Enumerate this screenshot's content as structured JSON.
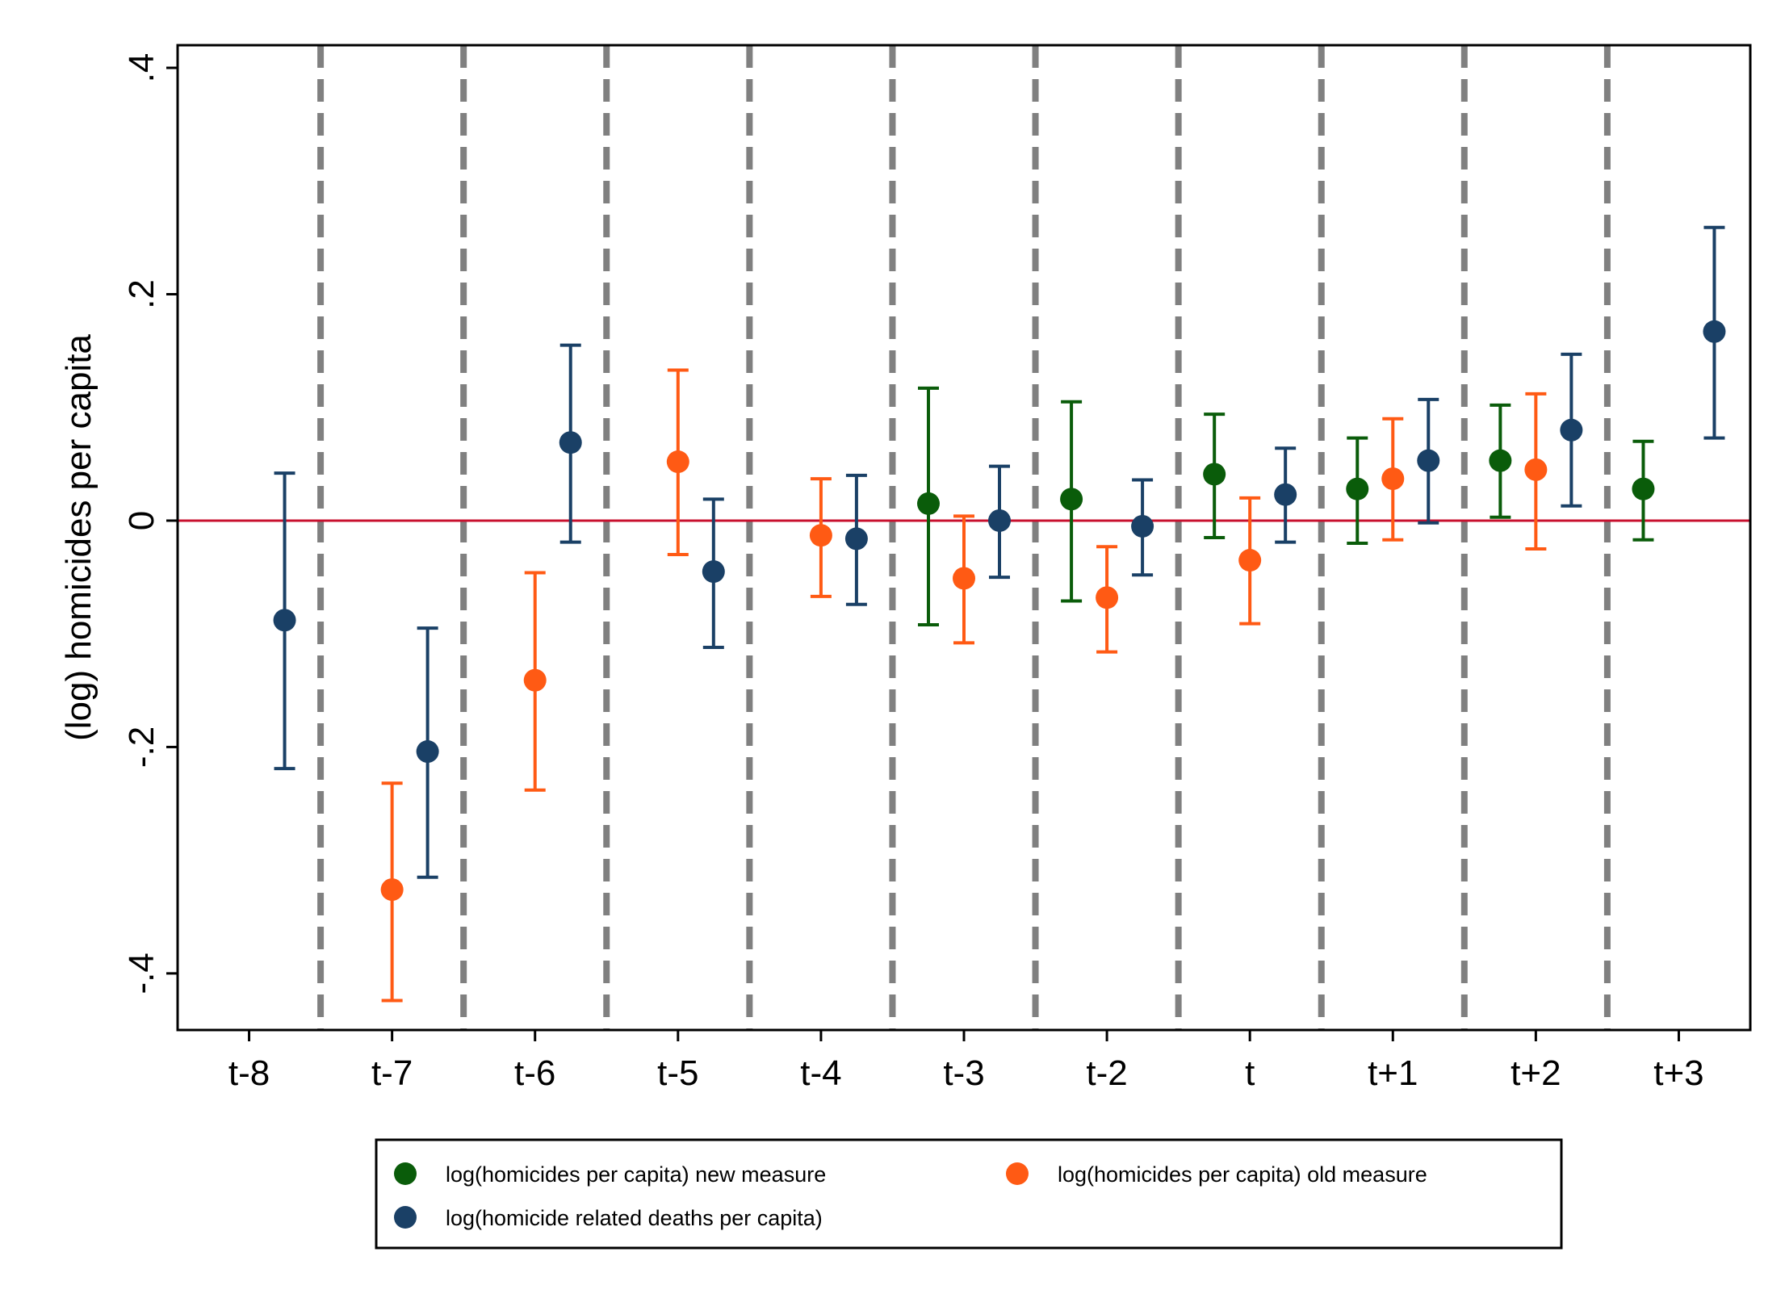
{
  "chart_data": {
    "type": "scatter",
    "subtype": "coefficient plot with confidence intervals",
    "title": "",
    "xlabel": "",
    "ylabel": "(log) homicides per capita",
    "categories": [
      "t-8",
      "t-7",
      "t-6",
      "t-5",
      "t-4",
      "t-3",
      "t-2",
      "t",
      "t+1",
      "t+2",
      "t+3"
    ],
    "ylim": [
      -0.45,
      0.42
    ],
    "yticks": [
      -0.4,
      -0.2,
      0,
      0.2,
      0.4
    ],
    "ytick_labels": [
      "-.4",
      "-.2",
      "0",
      ".2",
      ".4"
    ],
    "reference_line": {
      "y": 0,
      "color": "#c8102e"
    },
    "category_separators": "dashed vertical lines between categories",
    "legend_position": "bottom",
    "series": [
      {
        "name": "log(homicides per capita) new measure",
        "color": "#0a5c0a",
        "points": [
          {
            "category": "t-3",
            "estimate": 0.015,
            "ci_low": -0.092,
            "ci_high": 0.117
          },
          {
            "category": "t-2",
            "estimate": 0.019,
            "ci_low": -0.071,
            "ci_high": 0.105
          },
          {
            "category": "t",
            "estimate": 0.041,
            "ci_low": -0.015,
            "ci_high": 0.094
          },
          {
            "category": "t+1",
            "estimate": 0.028,
            "ci_low": -0.02,
            "ci_high": 0.073
          },
          {
            "category": "t+2",
            "estimate": 0.053,
            "ci_low": 0.003,
            "ci_high": 0.102
          },
          {
            "category": "t+3",
            "estimate": 0.028,
            "ci_low": -0.017,
            "ci_high": 0.07
          }
        ]
      },
      {
        "name": "log(homicides per capita) old measure",
        "color": "#ff5a14",
        "points": [
          {
            "category": "t-7",
            "estimate": -0.326,
            "ci_low": -0.424,
            "ci_high": -0.232
          },
          {
            "category": "t-6",
            "estimate": -0.141,
            "ci_low": -0.238,
            "ci_high": -0.046
          },
          {
            "category": "t-5",
            "estimate": 0.052,
            "ci_low": -0.03,
            "ci_high": 0.133
          },
          {
            "category": "t-4",
            "estimate": -0.013,
            "ci_low": -0.067,
            "ci_high": 0.037
          },
          {
            "category": "t-3",
            "estimate": -0.051,
            "ci_low": -0.108,
            "ci_high": 0.004
          },
          {
            "category": "t-2",
            "estimate": -0.068,
            "ci_low": -0.116,
            "ci_high": -0.023
          },
          {
            "category": "t",
            "estimate": -0.035,
            "ci_low": -0.091,
            "ci_high": 0.02
          },
          {
            "category": "t+1",
            "estimate": 0.037,
            "ci_low": -0.017,
            "ci_high": 0.09
          },
          {
            "category": "t+2",
            "estimate": 0.045,
            "ci_low": -0.025,
            "ci_high": 0.112
          }
        ]
      },
      {
        "name": "log(homicide related deaths per capita)",
        "color": "#1a4066",
        "points": [
          {
            "category": "t-8",
            "estimate": -0.088,
            "ci_low": -0.219,
            "ci_high": 0.042
          },
          {
            "category": "t-7",
            "estimate": -0.204,
            "ci_low": -0.315,
            "ci_high": -0.095
          },
          {
            "category": "t-6",
            "estimate": 0.069,
            "ci_low": -0.019,
            "ci_high": 0.155
          },
          {
            "category": "t-5",
            "estimate": -0.045,
            "ci_low": -0.112,
            "ci_high": 0.019
          },
          {
            "category": "t-4",
            "estimate": -0.016,
            "ci_low": -0.074,
            "ci_high": 0.04
          },
          {
            "category": "t-3",
            "estimate": 0.0,
            "ci_low": -0.05,
            "ci_high": 0.048
          },
          {
            "category": "t-2",
            "estimate": -0.005,
            "ci_low": -0.048,
            "ci_high": 0.036
          },
          {
            "category": "t",
            "estimate": 0.023,
            "ci_low": -0.019,
            "ci_high": 0.064
          },
          {
            "category": "t+1",
            "estimate": 0.053,
            "ci_low": -0.002,
            "ci_high": 0.107
          },
          {
            "category": "t+2",
            "estimate": 0.08,
            "ci_low": 0.013,
            "ci_high": 0.147
          },
          {
            "category": "t+3",
            "estimate": 0.167,
            "ci_low": 0.073,
            "ci_high": 0.259
          }
        ]
      }
    ]
  }
}
